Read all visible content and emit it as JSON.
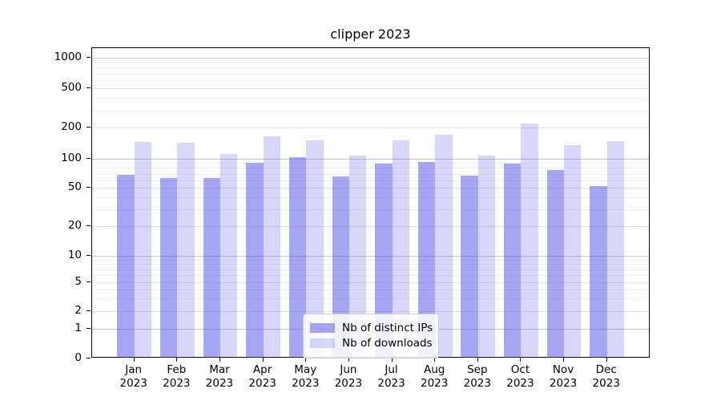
{
  "title": "clipper 2023",
  "chart_data": {
    "type": "bar",
    "title": "clipper 2023",
    "x_categories": [
      "Jan",
      "Feb",
      "Mar",
      "Apr",
      "May",
      "Jun",
      "Jul",
      "Aug",
      "Sep",
      "Oct",
      "Nov",
      "Dec"
    ],
    "x_year": "2023",
    "series": [
      {
        "name": "Nb of distinct IPs",
        "alpha": 0.45,
        "values": [
          68,
          63,
          63,
          90,
          104,
          66,
          89,
          93,
          67,
          88,
          77,
          52
        ]
      },
      {
        "name": "Nb of downloads",
        "alpha": 0.2,
        "values": [
          144,
          142,
          111,
          165,
          150,
          106,
          151,
          170,
          106,
          220,
          134,
          149
        ]
      }
    ],
    "bar_color_base": "#3c39e6",
    "yticks": [
      0,
      1,
      2,
      5,
      10,
      20,
      50,
      100,
      200,
      500,
      1000
    ],
    "scale": "symlog",
    "ylim": [
      0,
      1150
    ],
    "grid": true,
    "legend_position": "lower center"
  }
}
